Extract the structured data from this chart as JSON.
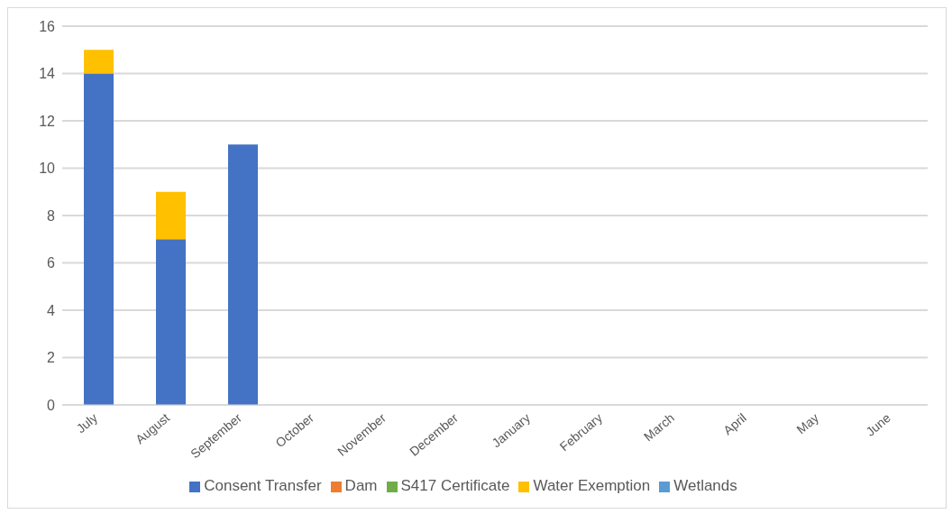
{
  "chart_data": {
    "type": "bar",
    "stacked": true,
    "categories": [
      "July",
      "August",
      "September",
      "October",
      "November",
      "December",
      "January",
      "February",
      "March",
      "April",
      "May",
      "June"
    ],
    "series": [
      {
        "name": "Consent Transfer",
        "color": "#4472c4",
        "values": [
          14,
          7,
          11,
          0,
          0,
          0,
          0,
          0,
          0,
          0,
          0,
          0
        ]
      },
      {
        "name": "Dam",
        "color": "#ed7d31",
        "values": [
          0,
          0,
          0,
          0,
          0,
          0,
          0,
          0,
          0,
          0,
          0,
          0
        ]
      },
      {
        "name": "Water Exemption",
        "color": "#ffc000",
        "values": [
          1,
          2,
          0,
          0,
          0,
          0,
          0,
          0,
          0,
          0,
          0,
          0
        ]
      },
      {
        "name": "Wetlands",
        "color": "#5b9bd5",
        "values": [
          0,
          0,
          0,
          0,
          0,
          0,
          0,
          0,
          0,
          0,
          0,
          0
        ]
      },
      {
        "name": "S417 Certificate",
        "color": "#70ad47",
        "values": [
          0,
          0,
          0,
          0,
          0,
          0,
          0,
          0,
          0,
          0,
          0,
          0
        ]
      }
    ],
    "ylim": [
      0,
      16
    ],
    "yticks": [
      0,
      2,
      4,
      6,
      8,
      10,
      12,
      14,
      16
    ],
    "grid": "y",
    "legend": "bottom"
  }
}
